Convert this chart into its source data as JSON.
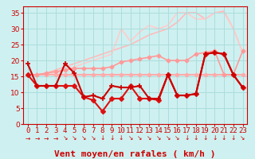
{
  "xlabel": "Vent moyen/en rafales ( km/h )",
  "bg_color": "#cff0f0",
  "grid_color": "#aadddd",
  "xlim": [
    -0.5,
    23.5
  ],
  "ylim": [
    0,
    37
  ],
  "yticks": [
    0,
    5,
    10,
    15,
    20,
    25,
    30,
    35
  ],
  "xticks": [
    0,
    1,
    2,
    3,
    4,
    5,
    6,
    7,
    8,
    9,
    10,
    11,
    12,
    13,
    14,
    15,
    16,
    17,
    18,
    19,
    20,
    21,
    22,
    23
  ],
  "lines": [
    {
      "y": [
        15.5,
        15.5,
        15.5,
        15.5,
        15.5,
        15.5,
        15.5,
        15.5,
        15.5,
        15.5,
        15.5,
        15.5,
        15.5,
        15.5,
        15.5,
        15.5,
        15.5,
        15.5,
        15.5,
        15.5,
        15.5,
        15.5,
        15.5,
        15.5
      ],
      "color": "#ffaaaa",
      "lw": 1.5,
      "marker": "D",
      "ms": 2.5,
      "zorder": 2
    },
    {
      "y": [
        15.5,
        15.5,
        16,
        16.5,
        17,
        17.5,
        17.5,
        17.5,
        17.5,
        18,
        19.5,
        20,
        20.5,
        21,
        21.5,
        20,
        20,
        20,
        22,
        22.5,
        23,
        15.5,
        15.5,
        23
      ],
      "color": "#ff9999",
      "lw": 1.2,
      "marker": "D",
      "ms": 2.5,
      "zorder": 3
    },
    {
      "y": [
        15.5,
        15.5,
        16,
        17,
        18,
        19,
        20,
        21,
        22,
        23,
        24,
        25,
        26.5,
        28,
        29,
        30,
        32,
        35,
        35,
        33,
        35,
        35.5,
        30,
        22.5
      ],
      "color": "#ffbbbb",
      "lw": 1.2,
      "marker": null,
      "zorder": 1
    },
    {
      "y": [
        15.5,
        15.5,
        15.5,
        16,
        17,
        18,
        19,
        20,
        21,
        22,
        30,
        26,
        29,
        31,
        30,
        31,
        35,
        35,
        33,
        33,
        35,
        35,
        30,
        22.5
      ],
      "color": "#ffcccc",
      "lw": 1.2,
      "marker": null,
      "zorder": 1
    },
    {
      "y": [
        19,
        12,
        12,
        12,
        19,
        16,
        8.5,
        9,
        8,
        12,
        11.5,
        11.5,
        12,
        8,
        8,
        15.5,
        9,
        9,
        9.5,
        22,
        22.5,
        22,
        15.5,
        11.5
      ],
      "color": "#cc0000",
      "lw": 1.5,
      "marker": "+",
      "ms": 5,
      "mew": 1.2,
      "zorder": 5
    },
    {
      "y": [
        15.5,
        12,
        12,
        12,
        12,
        12,
        8.5,
        7.5,
        4,
        8,
        8,
        12,
        8,
        8,
        7.5,
        15.5,
        9,
        9,
        9.5,
        22,
        22.5,
        22,
        15.5,
        11.5
      ],
      "color": "#dd1111",
      "lw": 1.5,
      "marker": "D",
      "ms": 3,
      "zorder": 4
    }
  ],
  "wind_arrows": [
    "→",
    "→",
    "→",
    "→",
    "↘",
    "↘",
    "↘",
    "↘",
    "↓",
    "↓",
    "↓",
    "↘",
    "↘",
    "↘",
    "↘",
    "↘",
    "↘",
    "↓",
    "↓",
    "↓",
    "↓",
    "↓",
    "↓",
    "↘"
  ],
  "arrow_color": "#cc0000",
  "xlabel_color": "#cc0000",
  "xlabel_fontsize": 8,
  "tick_color": "#cc0000",
  "tick_fontsize": 6.5
}
